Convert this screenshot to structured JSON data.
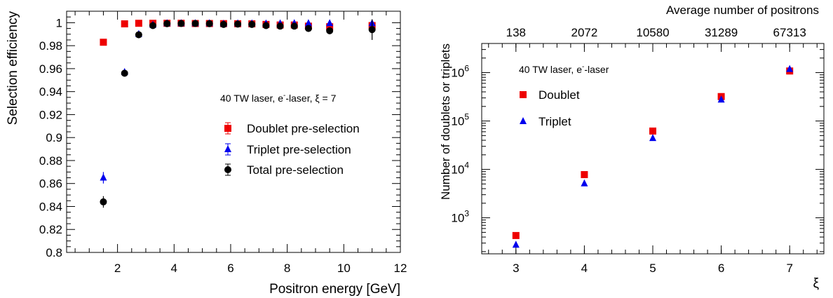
{
  "colors": {
    "doublet": "#ee0000",
    "triplet": "#0000ee",
    "total": "#000000",
    "axis": "#000000"
  },
  "chart_data": [
    {
      "type": "scatter",
      "ylabel": "Selection efficiency",
      "xlabel": "Positron energy [GeV]",
      "annotation": {
        "prefix": "40 TW laser, e",
        "sup": "-",
        "suffix": "-laser, ξ = 7"
      },
      "xlim": [
        0.2,
        12
      ],
      "ylim": [
        0.8,
        1.01
      ],
      "x_ticks": [
        "2",
        "4",
        "6",
        "8",
        "10",
        "12"
      ],
      "y_ticks": [
        "0.8",
        "0.82",
        "0.84",
        "0.86",
        "0.88",
        "0.9",
        "0.92",
        "0.94",
        "0.96",
        "0.98",
        "1"
      ],
      "legend_position": "center-right",
      "series": [
        {
          "name": "Doublet pre-selection",
          "marker": "square",
          "color": "#ee0000",
          "x": [
            1.5,
            2.25,
            2.75,
            3.25,
            3.75,
            4.25,
            4.75,
            5.25,
            5.75,
            6.25,
            6.75,
            7.25,
            7.75,
            8.25,
            8.75,
            9.5,
            11.0
          ],
          "y": [
            0.983,
            0.999,
            0.9995,
            0.9995,
            0.9995,
            0.9995,
            0.9993,
            0.9993,
            0.9992,
            0.9991,
            0.999,
            0.9985,
            0.998,
            0.998,
            0.997,
            0.9965,
            0.9975
          ],
          "err": [
            0.001,
            0.0005,
            0.0005,
            0.0003,
            0.0003,
            0.0003,
            0.0003,
            0.0003,
            0.0003,
            0.0004,
            0.0005,
            0.0006,
            0.0008,
            0.001,
            0.0012,
            0.0015,
            0.002
          ]
        },
        {
          "name": "Triplet pre-selection",
          "marker": "triangle",
          "color": "#0000ee",
          "x": [
            1.5,
            2.25,
            2.75,
            3.25,
            3.75,
            4.25,
            4.75,
            5.25,
            5.75,
            6.25,
            6.75,
            7.25,
            7.75,
            8.25,
            8.75,
            9.5,
            11.0
          ],
          "y": [
            0.865,
            0.957,
            0.99,
            0.998,
            0.9995,
            0.9995,
            0.9995,
            0.9995,
            0.999,
            0.9993,
            0.9993,
            0.9992,
            0.9993,
            0.9995,
            0.9995,
            0.9995,
            0.9995
          ],
          "err": [
            0.005,
            0.002,
            0.001,
            0.0008,
            0.0005,
            0.0005,
            0.0005,
            0.0005,
            0.0005,
            0.0005,
            0.0005,
            0.0006,
            0.0006,
            0.0007,
            0.0008,
            0.001,
            0.0015
          ]
        },
        {
          "name": "Total pre-selection",
          "marker": "circle",
          "color": "#000000",
          "x": [
            1.5,
            2.25,
            2.75,
            3.25,
            3.75,
            4.25,
            4.75,
            5.25,
            5.75,
            6.25,
            6.75,
            7.25,
            7.75,
            8.25,
            8.75,
            9.5,
            11.0
          ],
          "y": [
            0.844,
            0.956,
            0.9895,
            0.9975,
            0.9992,
            0.9993,
            0.9993,
            0.9992,
            0.9985,
            0.9988,
            0.9985,
            0.9975,
            0.997,
            0.997,
            0.995,
            0.993,
            0.994
          ],
          "err": [
            0.005,
            0.002,
            0.001,
            0.0008,
            0.0005,
            0.0005,
            0.0005,
            0.0005,
            0.0006,
            0.0006,
            0.0007,
            0.0008,
            0.001,
            0.0015,
            0.002,
            0.003,
            0.009
          ]
        }
      ]
    },
    {
      "type": "scatter",
      "ylabel": "Number of doublets or triplets",
      "xlabel": "ξ",
      "top_axis_label": "Average number of positrons",
      "top_ticks": [
        "138",
        "2072",
        "10580",
        "31289",
        "67313"
      ],
      "annotation": {
        "prefix": "40 TW laser, e",
        "sup": "-",
        "suffix": "-laser"
      },
      "xlim": [
        2.5,
        7.5
      ],
      "ylog": true,
      "ylim": [
        180,
        4000000
      ],
      "x_ticks": [
        "3",
        "4",
        "5",
        "6",
        "7"
      ],
      "y_ticks": [
        {
          "base": "10",
          "exp": "3",
          "value": 1000
        },
        {
          "base": "10",
          "exp": "4",
          "value": 10000
        },
        {
          "base": "10",
          "exp": "5",
          "value": 100000
        },
        {
          "base": "10",
          "exp": "6",
          "value": 1000000
        }
      ],
      "legend_position": "top-left",
      "series": [
        {
          "name": "Doublet",
          "marker": "square",
          "color": "#ee0000",
          "x": [
            3,
            4,
            5,
            6,
            7
          ],
          "y": [
            430,
            7800,
            62000,
            320000,
            1080000
          ]
        },
        {
          "name": "Triplet",
          "marker": "triangle",
          "color": "#0000ee",
          "x": [
            3,
            4,
            5,
            6,
            7
          ],
          "y": [
            275,
            5100,
            44000,
            275000,
            1180000
          ]
        }
      ]
    }
  ]
}
